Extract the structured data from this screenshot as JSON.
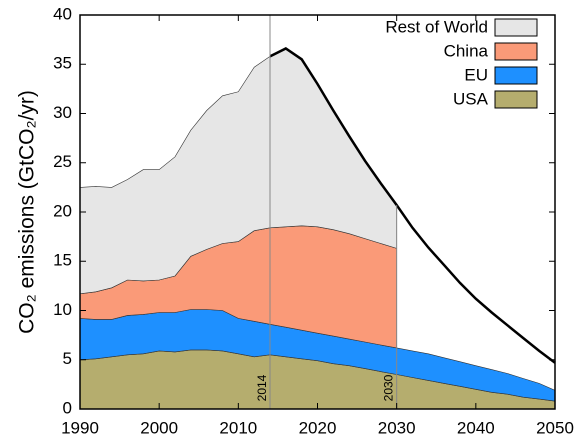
{
  "chart_data": {
    "type": "stacked_area",
    "y_label": "CO₂ emissions (GtCO₂/yr)",
    "x": [
      1990,
      1992,
      1994,
      1996,
      1998,
      2000,
      2002,
      2004,
      2006,
      2008,
      2010,
      2012,
      2014,
      2016,
      2018,
      2020,
      2022,
      2024,
      2026,
      2028,
      2030,
      2032,
      2034,
      2036,
      2038,
      2040,
      2042,
      2044,
      2046,
      2048,
      2050
    ],
    "series": [
      {
        "name": "USA",
        "color": "#b5ad6e",
        "values": [
          5.0,
          5.1,
          5.3,
          5.5,
          5.6,
          5.9,
          5.8,
          6.0,
          6.0,
          5.9,
          5.6,
          5.3,
          5.5,
          5.3,
          5.1,
          4.9,
          4.6,
          4.4,
          4.1,
          3.8,
          3.5,
          3.2,
          2.9,
          2.6,
          2.3,
          2.0,
          1.7,
          1.5,
          1.2,
          1.0,
          0.8
        ]
      },
      {
        "name": "EU",
        "color": "#1e90ff",
        "values": [
          4.2,
          4.0,
          3.8,
          4.0,
          4.0,
          3.9,
          4.0,
          4.1,
          4.1,
          4.1,
          3.6,
          3.6,
          3.1,
          3.0,
          2.9,
          2.8,
          2.8,
          2.7,
          2.7,
          2.7,
          2.7,
          2.7,
          2.7,
          2.6,
          2.5,
          2.4,
          2.3,
          2.1,
          1.9,
          1.6,
          1.1
        ]
      },
      {
        "name": "China",
        "color": "#fa9a78",
        "values": [
          2.5,
          2.8,
          3.2,
          3.6,
          3.4,
          3.3,
          3.7,
          5.4,
          6.1,
          6.8,
          7.8,
          9.2,
          9.8,
          10.2,
          10.6,
          10.8,
          10.8,
          10.7,
          10.5,
          10.3,
          10.1,
          null,
          null,
          null,
          null,
          null,
          null,
          null,
          null,
          null,
          null
        ]
      },
      {
        "name": "Rest of World",
        "color": "#e6e6e6",
        "values": [
          10.8,
          10.7,
          10.2,
          10.2,
          11.3,
          11.2,
          12.1,
          12.8,
          14.1,
          15.0,
          15.2,
          16.6,
          17.4,
          18.1,
          16.9,
          14.5,
          12.1,
          9.9,
          7.9,
          6.1,
          4.4,
          null,
          null,
          null,
          null,
          null,
          null,
          null,
          null,
          null,
          null
        ]
      }
    ],
    "total_line": {
      "color": "#000000",
      "values": [
        null,
        null,
        null,
        null,
        null,
        null,
        null,
        null,
        null,
        null,
        null,
        null,
        35.8,
        36.6,
        35.5,
        33.0,
        30.3,
        27.7,
        25.2,
        22.9,
        20.7,
        18.4,
        16.4,
        14.6,
        12.8,
        11.2,
        9.8,
        8.5,
        7.2,
        5.9,
        4.7
      ]
    },
    "vlines": [
      2014,
      2030
    ],
    "xlim": [
      1990,
      2050
    ],
    "xticks": [
      1990,
      2000,
      2010,
      2020,
      2030,
      2040,
      2050
    ],
    "ylim": [
      0,
      40
    ],
    "yticks": [
      0,
      5,
      10,
      15,
      20,
      25,
      30,
      35,
      40
    ],
    "legend": "upper right"
  }
}
